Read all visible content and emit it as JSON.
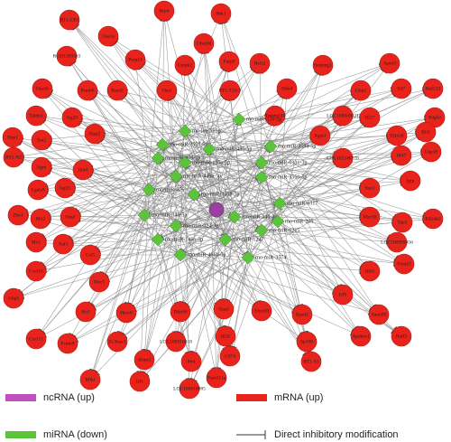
{
  "mrna_nodes": [
    "RT1-CE5",
    "Rtp4",
    "Sbk1",
    "Oas1a",
    "Ube2l6",
    "RGD1309363",
    "Parp14",
    "Cmpk2",
    "Parp9",
    "Helz2",
    "Serping1",
    "Apol3",
    "Oas1b",
    "Psmb8",
    "Rsad2",
    "Oasl",
    "RT1-T24-3",
    "Slfn4",
    "Gbp2",
    "Irf7",
    "Rnf213",
    "Taldo1",
    "Isg20",
    "Tmem140",
    "LOC108349421",
    "Ifi27",
    "Pdgfrl",
    "Nqo1",
    "Bst2",
    "Oasl2",
    "Irgm1",
    "Ddx58",
    "Ifit2",
    "RT1-N2",
    "Irgm",
    "Ifi44",
    "LOC102548778",
    "Ifi47",
    "Usp18",
    "Lgals9",
    "Isg15",
    "Igtp",
    "Stat1",
    "Zbp1",
    "Mx2",
    "Oas2",
    "Dhx58",
    "Tap1",
    "Eif2ak2",
    "Mx1",
    "Xaf1",
    "Ccl5",
    "LOC100909456",
    "Trim21",
    "Ifih1",
    "Cxcl10",
    "Nlrc5",
    "Irf9",
    "Gbp5",
    "Ifit1",
    "Herc6",
    "Ddx60",
    "Oas3",
    "Trim30",
    "Epsti1",
    "Samd9l",
    "Batf2",
    "Cxcl11",
    "Psmb9",
    "Zc3hav1",
    "LOC100910418",
    "Ifi35",
    "Sp100",
    "Apobec1",
    "Ifitm3",
    "Pml",
    "Cd74",
    "RT1-S3",
    "Mlkl",
    "Irf1",
    "LOC100910885",
    "Fam111a"
  ],
  "mirna_nodes": [
    "rno-let-7e-5p",
    "rno-miR-326-5p",
    "rno-miR-3557-5p",
    "rno-miR-485-5p",
    "rno-miR-3594-5p",
    "rno-miR-879-5p",
    "rno-miR-135a-5p",
    "rno-miR-6331-3p",
    "rno-miR-449a-5p",
    "rno-miR-3550-5p",
    "rno-miR-676",
    "rno-miR-3558-5p",
    "rno-miR-6317",
    "rno-miR-346-5p",
    "rno-miR-140-3p",
    "rno-miR-205",
    "rno-miR-324-3p",
    "rno-miR-6215",
    "rno-miR-146a-3p",
    "rno-miR-1247",
    "rno-miR-466b-5p",
    "rno-miR-3574"
  ],
  "legend": [
    "ncRNA (up)",
    "miRNA (down)",
    "mRNA (up)",
    "Direct inhibitory modification"
  ]
}
